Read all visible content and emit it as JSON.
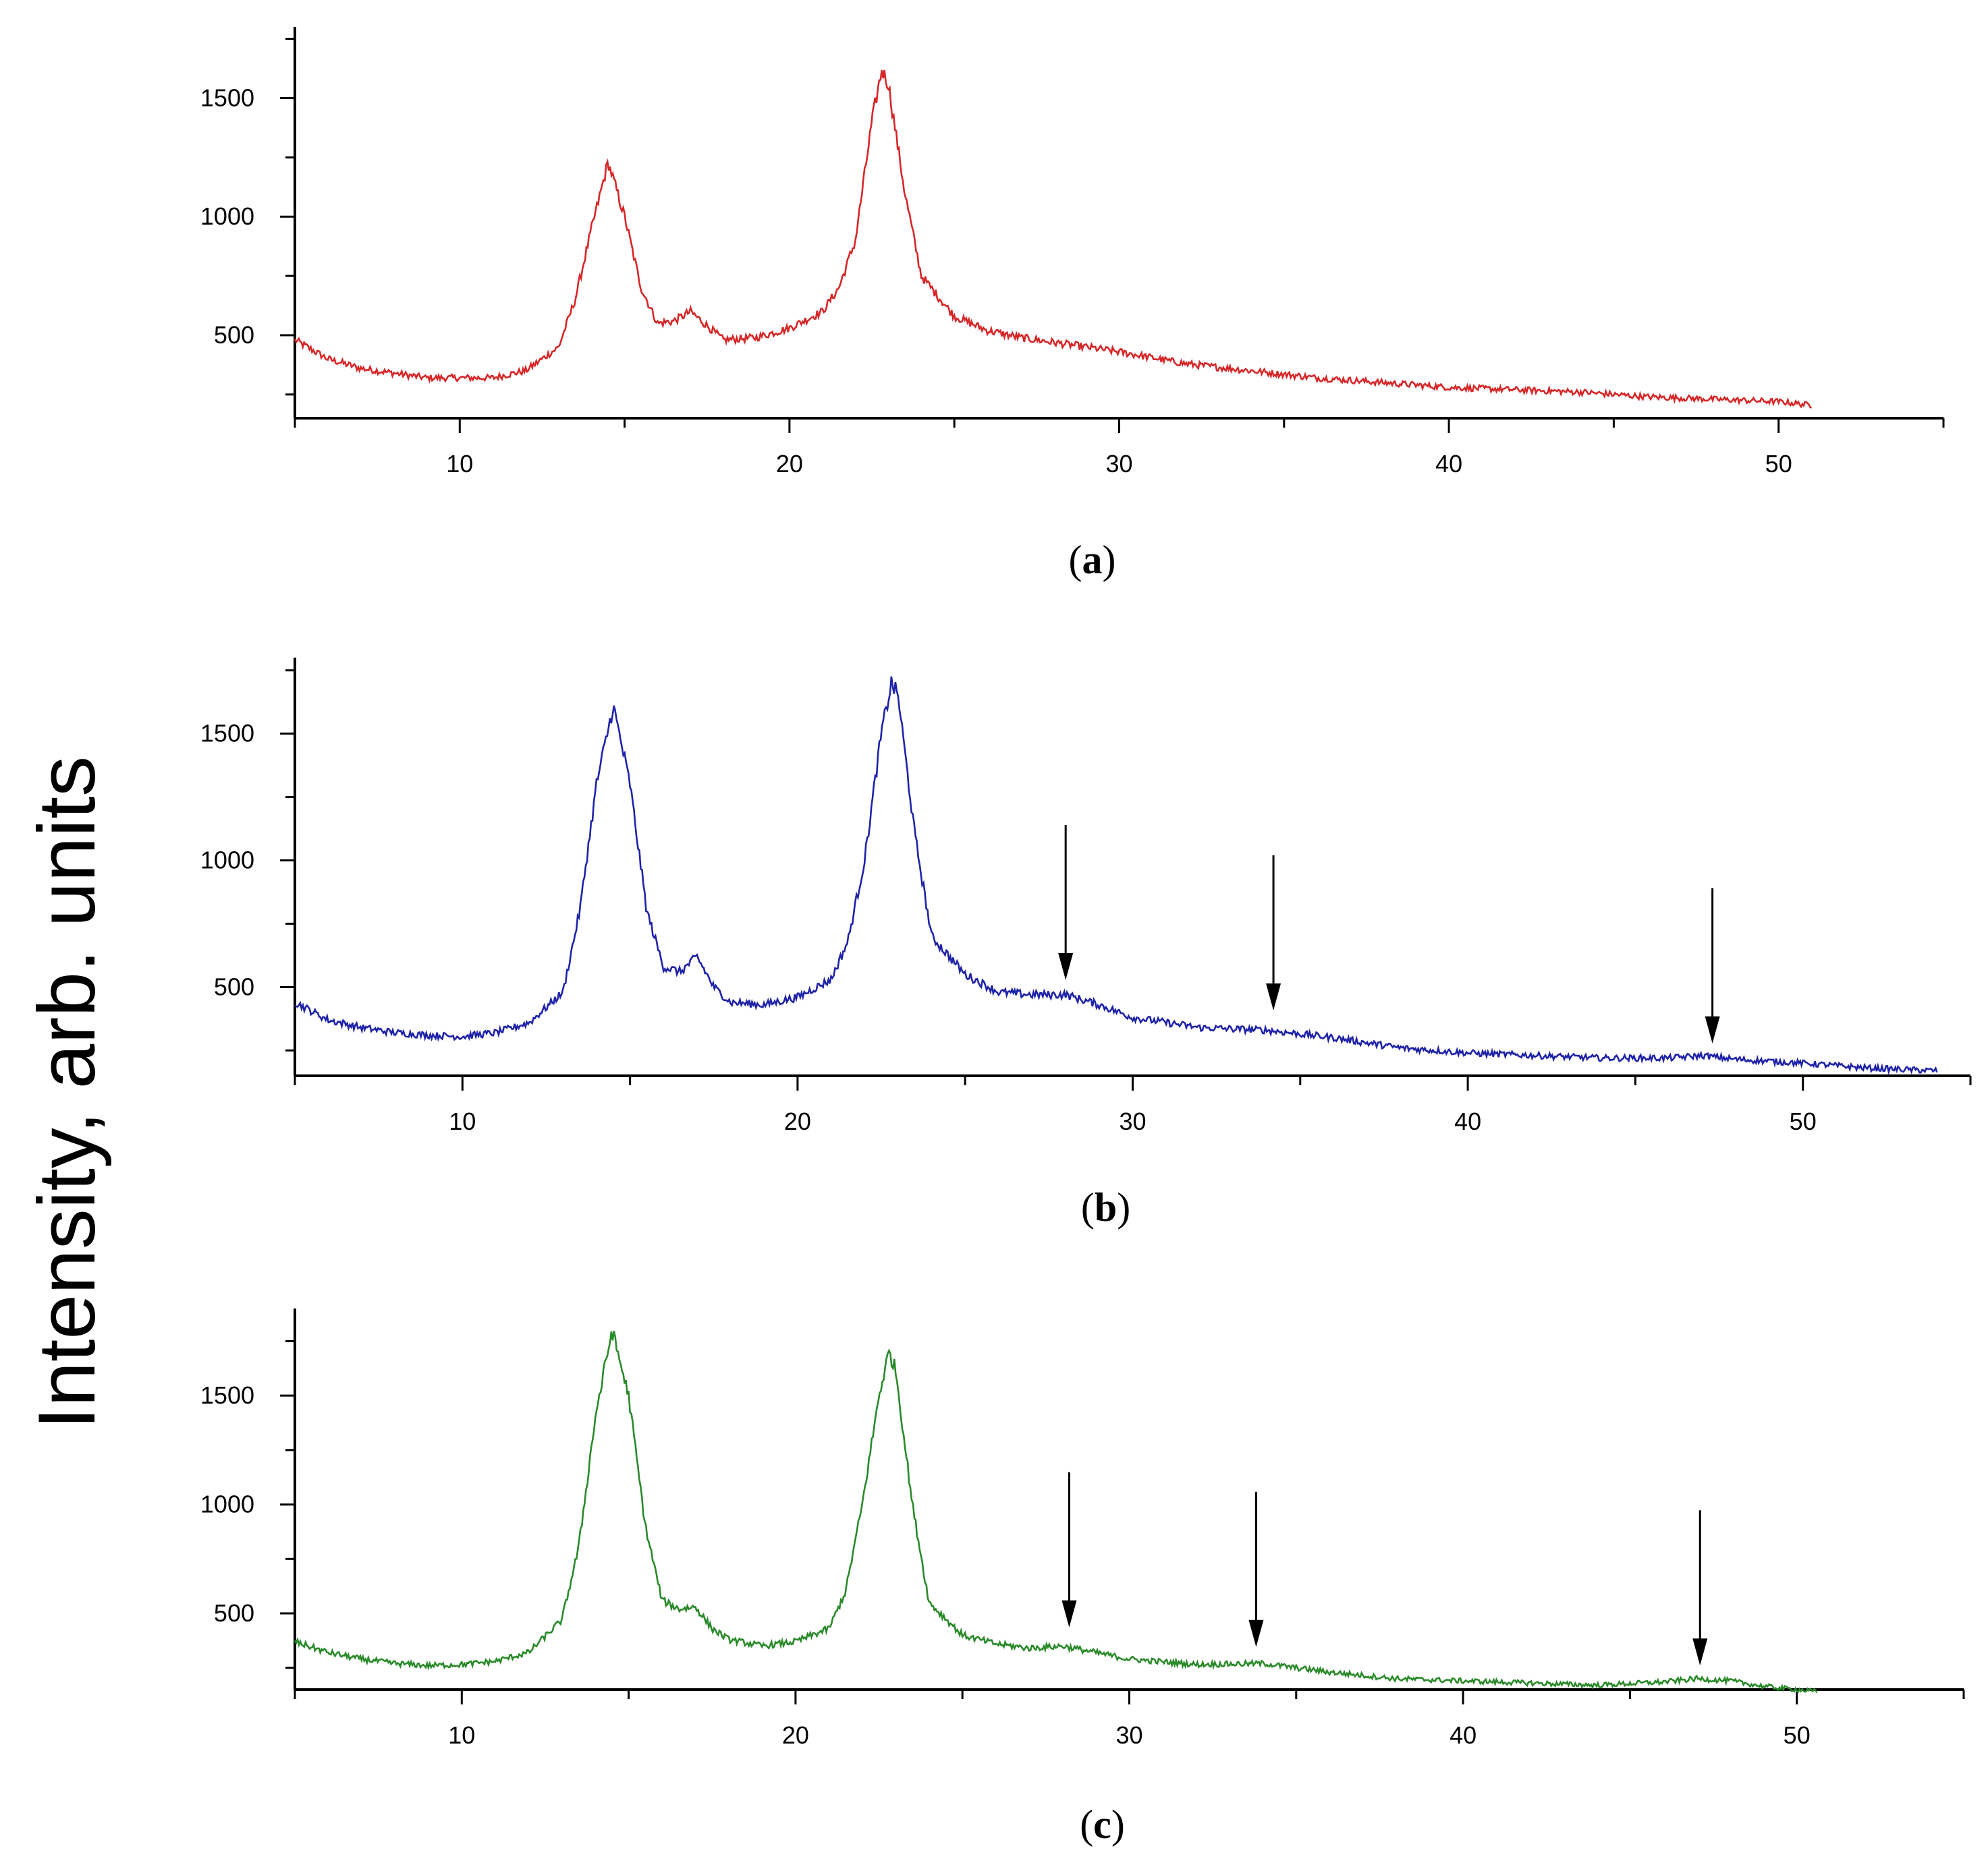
{
  "figure": {
    "ylabel": "Intensity, arb. units"
  },
  "chart_data": [
    {
      "type": "line",
      "panel_label": "a",
      "color": "#d62728",
      "xlim": [
        5,
        55
      ],
      "x_ticks": [
        10,
        20,
        30,
        40,
        50
      ],
      "y_ticks": [
        500,
        1000,
        1500
      ],
      "ylim": [
        150,
        1800
      ],
      "x": [
        5,
        6,
        7,
        8,
        9,
        10,
        11,
        12,
        13,
        13.5,
        14,
        14.5,
        15,
        15.5,
        16,
        16.5,
        17,
        17.5,
        18,
        19,
        20,
        21,
        21.5,
        22,
        22.5,
        22.8,
        23,
        23.5,
        24,
        25,
        26,
        27,
        28,
        29,
        30,
        32,
        34,
        36,
        38,
        40,
        42,
        44,
        46,
        48,
        50,
        51
      ],
      "y": [
        480,
        400,
        360,
        340,
        320,
        320,
        320,
        350,
        450,
        650,
        950,
        1230,
        1000,
        700,
        550,
        560,
        600,
        540,
        480,
        490,
        530,
        600,
        700,
        900,
        1400,
        1620,
        1560,
        1100,
        750,
        580,
        520,
        490,
        470,
        450,
        430,
        380,
        350,
        320,
        300,
        280,
        270,
        260,
        240,
        230,
        220,
        205
      ],
      "annotations": []
    },
    {
      "type": "line",
      "panel_label": "b",
      "color": "#1f23a8",
      "xlim": [
        5,
        55
      ],
      "x_ticks": [
        10,
        20,
        30,
        40,
        50
      ],
      "y_ticks": [
        500,
        1000,
        1500
      ],
      "ylim": [
        150,
        1800
      ],
      "x": [
        5,
        6,
        7,
        8,
        9,
        10,
        11,
        12,
        13,
        13.5,
        14,
        14.5,
        15,
        15.5,
        16,
        16.5,
        17,
        17.5,
        18,
        19,
        20,
        21,
        21.5,
        22,
        22.5,
        22.8,
        23,
        23.5,
        24,
        25,
        26,
        27,
        28,
        29,
        30,
        32,
        34,
        36,
        38,
        40,
        42,
        44,
        46,
        47,
        48,
        50,
        52,
        54
      ],
      "y": [
        440,
        370,
        340,
        320,
        310,
        305,
        320,
        360,
        480,
        800,
        1300,
        1610,
        1300,
        800,
        580,
        560,
        620,
        500,
        440,
        430,
        460,
        530,
        680,
        1000,
        1500,
        1700,
        1650,
        1100,
        700,
        550,
        480,
        470,
        470,
        430,
        380,
        340,
        330,
        300,
        260,
        240,
        230,
        220,
        220,
        230,
        215,
        200,
        180,
        170
      ],
      "annotations": [
        {
          "type": "arrow",
          "x": 28,
          "y": 480
        },
        {
          "type": "arrow",
          "x": 34.2,
          "y": 360
        },
        {
          "type": "arrow",
          "x": 47.3,
          "y": 230
        }
      ]
    },
    {
      "type": "line",
      "panel_label": "c",
      "color": "#2a8a2a",
      "xlim": [
        5,
        55
      ],
      "x_ticks": [
        10,
        20,
        30,
        40,
        50
      ],
      "y_ticks": [
        500,
        1000,
        1500
      ],
      "ylim": [
        150,
        1900
      ],
      "x": [
        5,
        6,
        7,
        8,
        9,
        10,
        11,
        12,
        13,
        13.5,
        14,
        14.5,
        15,
        15.5,
        16,
        16.5,
        17,
        17.5,
        18,
        19,
        20,
        21,
        21.5,
        22,
        22.5,
        22.8,
        23,
        23.5,
        24,
        25,
        26,
        27,
        28,
        29,
        30,
        32,
        34,
        36,
        38,
        40,
        42,
        44,
        46,
        47,
        48,
        49,
        50,
        50.6
      ],
      "y": [
        370,
        320,
        290,
        270,
        260,
        265,
        280,
        320,
        470,
        800,
        1400,
        1800,
        1500,
        900,
        560,
        520,
        530,
        430,
        380,
        350,
        370,
        430,
        600,
        1000,
        1500,
        1700,
        1620,
        1000,
        550,
        400,
        360,
        340,
        350,
        320,
        290,
        265,
        270,
        230,
        200,
        190,
        180,
        170,
        185,
        200,
        190,
        165,
        150,
        140
      ],
      "annotations": [
        {
          "type": "arrow",
          "x": 28.2,
          "y": 380
        },
        {
          "type": "arrow",
          "x": 33.8,
          "y": 290
        },
        {
          "type": "arrow",
          "x": 47.1,
          "y": 205
        }
      ]
    }
  ]
}
